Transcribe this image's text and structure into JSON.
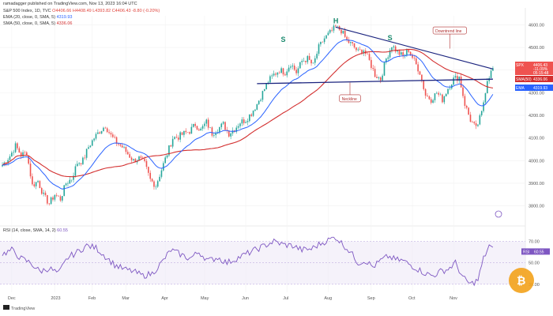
{
  "header": {
    "published": "ramadagger published on TradingView.com, Nov 13, 2023 16:04 UTC",
    "symbol": "S&P 500 Index, 1D, TVC",
    "ohlc": "O4406.66 H4408.49 L4393.82 C4406.43 -8.80 (-0.20%)",
    "ema": "EMA (20, close, 0, SMA, 5)",
    "ema_value": "4319.93",
    "sma": "SMA (50, close, 0, SMA, 5)",
    "sma_value": "4336.06"
  },
  "rsi_header": {
    "label": "RSI (14, close, SMA, 14, 2)",
    "value": "60.55"
  },
  "tv_brand": "TradingView",
  "colors": {
    "candle_up": "#26a69a",
    "candle_down": "#ef5350",
    "ema": "#2962ff",
    "sma": "#d32f2f",
    "rsi": "#7e57c2",
    "neckline": "#1a237e",
    "pattern": "#19896d"
  },
  "chart_data": {
    "type": "candlestick",
    "x_ticks": [
      "Dec",
      "2023",
      "Feb",
      "Mar",
      "Apr",
      "May",
      "Jun",
      "Jul",
      "Aug",
      "Sep",
      "Oct",
      "Nov"
    ],
    "y_ticks": [
      "4600.00",
      "4500.00",
      "4400.00",
      "4300.00",
      "4200.00",
      "4100.00",
      "4000.00",
      "3900.00",
      "3800.00"
    ],
    "ylim": [
      3760,
      4640
    ],
    "rsi_ticks": [
      "70.00",
      "50.00",
      "30.00"
    ],
    "rsi_ylim": [
      24,
      80
    ],
    "patterns": [
      {
        "label": "H",
        "date_index": 178,
        "price": 4607
      },
      {
        "label": "S",
        "date_index": 150,
        "price": 4525
      },
      {
        "label": "S",
        "date_index": 207,
        "price": 4532
      }
    ],
    "annotations": [
      {
        "text": "Downtrend line",
        "date_index": 230,
        "price": 4570
      },
      {
        "text": "Neckline",
        "date_index": 180,
        "price": 4270
      }
    ],
    "neckline": [
      [
        136,
        4340
      ],
      [
        262,
        4360
      ]
    ],
    "downtrend": [
      [
        178,
        4590
      ],
      [
        262,
        4405
      ]
    ],
    "price_tags": [
      {
        "label": "SPX",
        "value": "4406.43",
        "extra": "-11.09%",
        "time": "05:15:48",
        "color": "#ef5350"
      },
      {
        "label": "SMA(50)",
        "value": "4336.06",
        "color": "#d32f2f"
      },
      {
        "label": "EMA",
        "value": "4319.93",
        "color": "#2962ff"
      }
    ],
    "rsi_tag": {
      "label": "RSI",
      "value": "60.55"
    },
    "price_keypoints": [
      [
        0,
        3980
      ],
      [
        4,
        4020
      ],
      [
        7,
        4065
      ],
      [
        10,
        4025
      ],
      [
        13,
        4035
      ],
      [
        16,
        3890
      ],
      [
        19,
        3910
      ],
      [
        22,
        3845
      ],
      [
        25,
        3810
      ],
      [
        28,
        3850
      ],
      [
        31,
        3830
      ],
      [
        34,
        3900
      ],
      [
        37,
        3920
      ],
      [
        40,
        3990
      ],
      [
        43,
        4000
      ],
      [
        46,
        4060
      ],
      [
        49,
        4100
      ],
      [
        52,
        4130
      ],
      [
        55,
        4155
      ],
      [
        58,
        4110
      ],
      [
        61,
        4080
      ],
      [
        64,
        4060
      ],
      [
        67,
        4030
      ],
      [
        70,
        4000
      ],
      [
        73,
        4010
      ],
      [
        76,
        3985
      ],
      [
        79,
        3915
      ],
      [
        82,
        3890
      ],
      [
        85,
        3960
      ],
      [
        88,
        4030
      ],
      [
        91,
        4100
      ],
      [
        94,
        4105
      ],
      [
        97,
        4120
      ],
      [
        100,
        4130
      ],
      [
        103,
        4160
      ],
      [
        106,
        4135
      ],
      [
        109,
        4170
      ],
      [
        112,
        4120
      ],
      [
        115,
        4140
      ],
      [
        118,
        4160
      ],
      [
        121,
        4120
      ],
      [
        124,
        4140
      ],
      [
        127,
        4170
      ],
      [
        130,
        4180
      ],
      [
        133,
        4210
      ],
      [
        136,
        4250
      ],
      [
        139,
        4300
      ],
      [
        142,
        4350
      ],
      [
        145,
        4380
      ],
      [
        148,
        4400
      ],
      [
        151,
        4390
      ],
      [
        154,
        4430
      ],
      [
        157,
        4390
      ],
      [
        160,
        4440
      ],
      [
        163,
        4450
      ],
      [
        166,
        4420
      ],
      [
        169,
        4500
      ],
      [
        172,
        4540
      ],
      [
        175,
        4565
      ],
      [
        178,
        4590
      ],
      [
        181,
        4575
      ],
      [
        184,
        4530
      ],
      [
        187,
        4510
      ],
      [
        190,
        4480
      ],
      [
        193,
        4490
      ],
      [
        196,
        4440
      ],
      [
        199,
        4380
      ],
      [
        202,
        4360
      ],
      [
        205,
        4450
      ],
      [
        208,
        4510
      ],
      [
        211,
        4480
      ],
      [
        214,
        4460
      ],
      [
        217,
        4490
      ],
      [
        220,
        4440
      ],
      [
        223,
        4390
      ],
      [
        226,
        4290
      ],
      [
        229,
        4270
      ],
      [
        232,
        4300
      ],
      [
        235,
        4270
      ],
      [
        238,
        4320
      ],
      [
        241,
        4360
      ],
      [
        244,
        4370
      ],
      [
        247,
        4250
      ],
      [
        250,
        4180
      ],
      [
        253,
        4140
      ],
      [
        256,
        4210
      ],
      [
        259,
        4360
      ],
      [
        262,
        4406
      ]
    ],
    "rsi_keypoints": [
      [
        0,
        58
      ],
      [
        5,
        62
      ],
      [
        10,
        54
      ],
      [
        15,
        50
      ],
      [
        20,
        42
      ],
      [
        25,
        45
      ],
      [
        30,
        40
      ],
      [
        35,
        55
      ],
      [
        40,
        60
      ],
      [
        45,
        66
      ],
      [
        50,
        64
      ],
      [
        55,
        56
      ],
      [
        60,
        48
      ],
      [
        65,
        44
      ],
      [
        70,
        42
      ],
      [
        75,
        38
      ],
      [
        80,
        40
      ],
      [
        85,
        50
      ],
      [
        90,
        62
      ],
      [
        95,
        58
      ],
      [
        100,
        54
      ],
      [
        105,
        60
      ],
      [
        110,
        52
      ],
      [
        115,
        55
      ],
      [
        120,
        50
      ],
      [
        125,
        54
      ],
      [
        130,
        58
      ],
      [
        135,
        62
      ],
      [
        140,
        66
      ],
      [
        145,
        70
      ],
      [
        150,
        67
      ],
      [
        155,
        66
      ],
      [
        160,
        62
      ],
      [
        165,
        63
      ],
      [
        170,
        68
      ],
      [
        175,
        72
      ],
      [
        178,
        74
      ],
      [
        182,
        67
      ],
      [
        186,
        60
      ],
      [
        190,
        50
      ],
      [
        194,
        52
      ],
      [
        198,
        46
      ],
      [
        202,
        52
      ],
      [
        206,
        56
      ],
      [
        210,
        53
      ],
      [
        214,
        52
      ],
      [
        218,
        48
      ],
      [
        222,
        44
      ],
      [
        226,
        40
      ],
      [
        230,
        38
      ],
      [
        234,
        42
      ],
      [
        238,
        44
      ],
      [
        242,
        50
      ],
      [
        246,
        36
      ],
      [
        250,
        30
      ],
      [
        254,
        34
      ],
      [
        257,
        54
      ],
      [
        260,
        66
      ],
      [
        262,
        62
      ]
    ]
  }
}
